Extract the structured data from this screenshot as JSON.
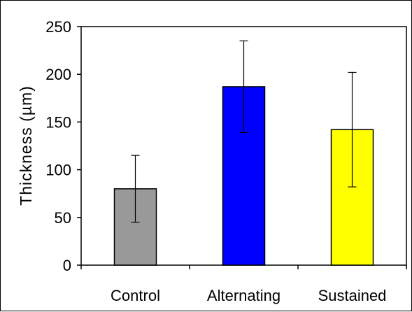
{
  "chart_data": {
    "type": "bar",
    "title": "",
    "xlabel": "",
    "ylabel": "Thickness (µm)",
    "categories": [
      "Control",
      "Alternating",
      "Sustained"
    ],
    "values": [
      80,
      187,
      142
    ],
    "errors": [
      35,
      48,
      60
    ],
    "colors": [
      "#999999",
      "#0000ff",
      "#ffff00"
    ],
    "ylim": [
      0,
      250
    ],
    "yticks": [
      "0",
      "50",
      "100",
      "150",
      "200",
      "250"
    ],
    "grid": false,
    "legend": "none"
  }
}
